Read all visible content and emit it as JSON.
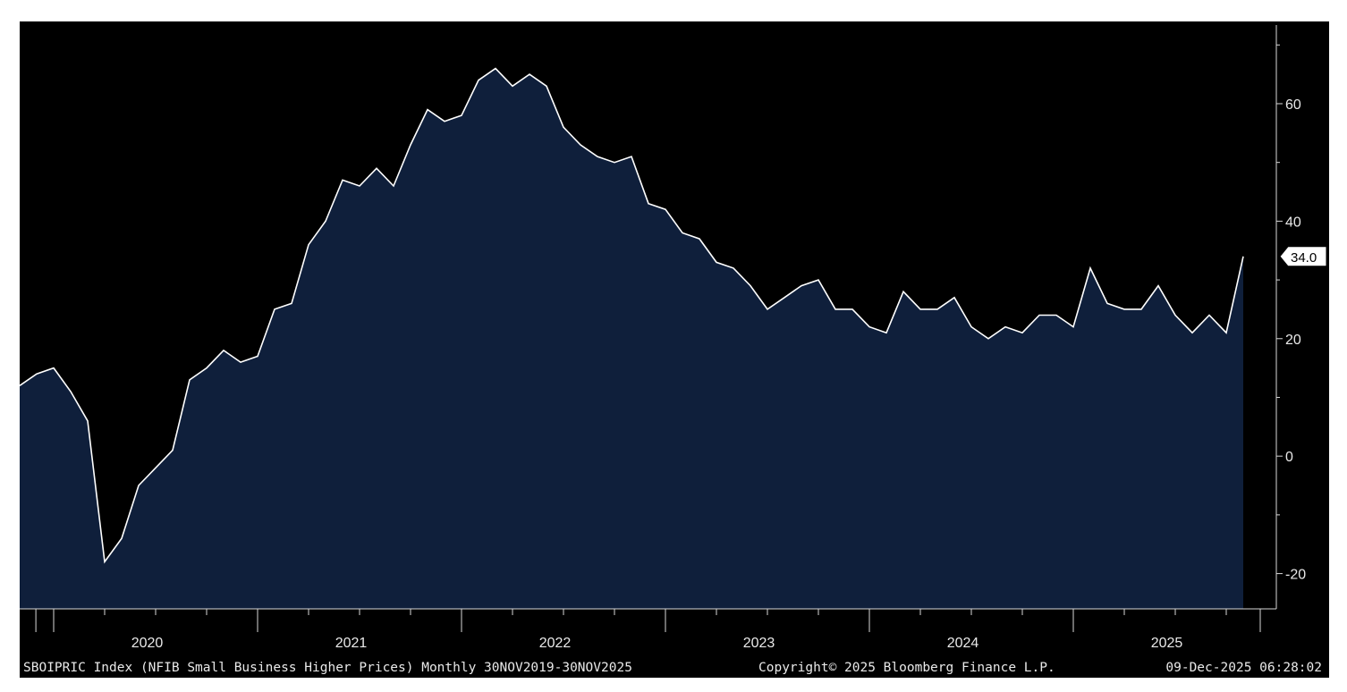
{
  "chart_data": {
    "type": "area",
    "title": "",
    "xlabel": "",
    "ylabel": "",
    "x_start": "2019-11",
    "x_end": "2025-11",
    "ylim": [
      -26,
      74
    ],
    "y_ticks": [
      -20,
      0,
      20,
      40,
      60
    ],
    "y_tick_labels": [
      "-20",
      "0",
      "20",
      "40",
      "60"
    ],
    "x_year_labels": [
      "2020",
      "2021",
      "2022",
      "2023",
      "2024",
      "2025"
    ],
    "grid": false,
    "series": [
      {
        "values": [
          12,
          14,
          15,
          11,
          6,
          -18,
          -14,
          -5,
          -2,
          1,
          13,
          15,
          18,
          16,
          17,
          25,
          26,
          36,
          40,
          47,
          46,
          49,
          46,
          53,
          59,
          57,
          58,
          64,
          66,
          63,
          65,
          63,
          56,
          53,
          51,
          50,
          51,
          43,
          42,
          38,
          37,
          33,
          32,
          29,
          25,
          27,
          29,
          30,
          25,
          25,
          22,
          21,
          28,
          25,
          25,
          27,
          22,
          20,
          22,
          21,
          24,
          24,
          22,
          32,
          26,
          25,
          25,
          29,
          24,
          21,
          24,
          21,
          34
        ],
        "color": "#ffffff",
        "fill": "#0f1f3b"
      }
    ],
    "last_value_label": "34.0"
  },
  "footer": {
    "ticker_text": "SBOIPRIC Index (NFIB Small Business Higher Prices) Monthly 30NOV2019-30NOV2025",
    "copyright_text": "Copyright© 2025 Bloomberg Finance L.P.",
    "timestamp_text": "09-Dec-2025 06:28:02"
  },
  "colors": {
    "background": "#000000",
    "area_fill": "#0f1f3b",
    "line": "#ffffff",
    "axis": "#d8d8d8",
    "text": "#e9e9e9"
  }
}
